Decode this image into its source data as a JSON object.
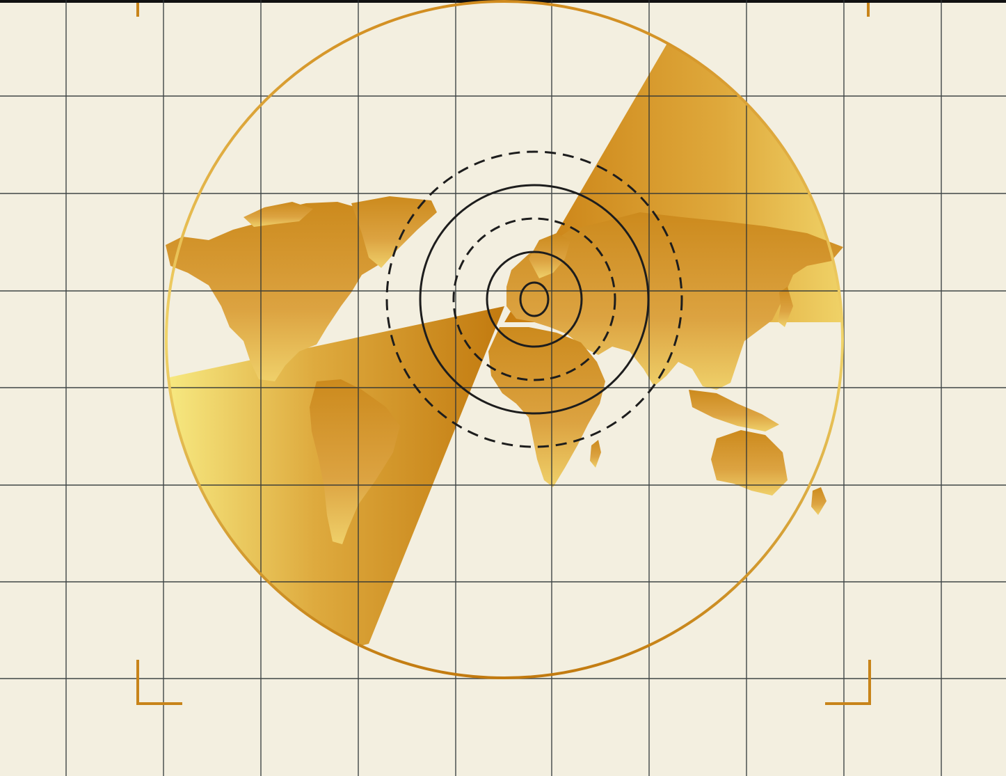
{
  "scene": {
    "subject": "world-map-radar-illustration",
    "colors": {
      "background": "#f3efe0",
      "grid_line": "#2c3336",
      "gold_dark": "#c27a0f",
      "gold_mid": "#dba33a",
      "gold_light": "#f7e27a",
      "ring_ink": "#1d1d1d",
      "frame_rule": "#111111"
    },
    "icons": [
      "radar-sweep",
      "concentric-target-rings",
      "corner-bracket"
    ]
  }
}
